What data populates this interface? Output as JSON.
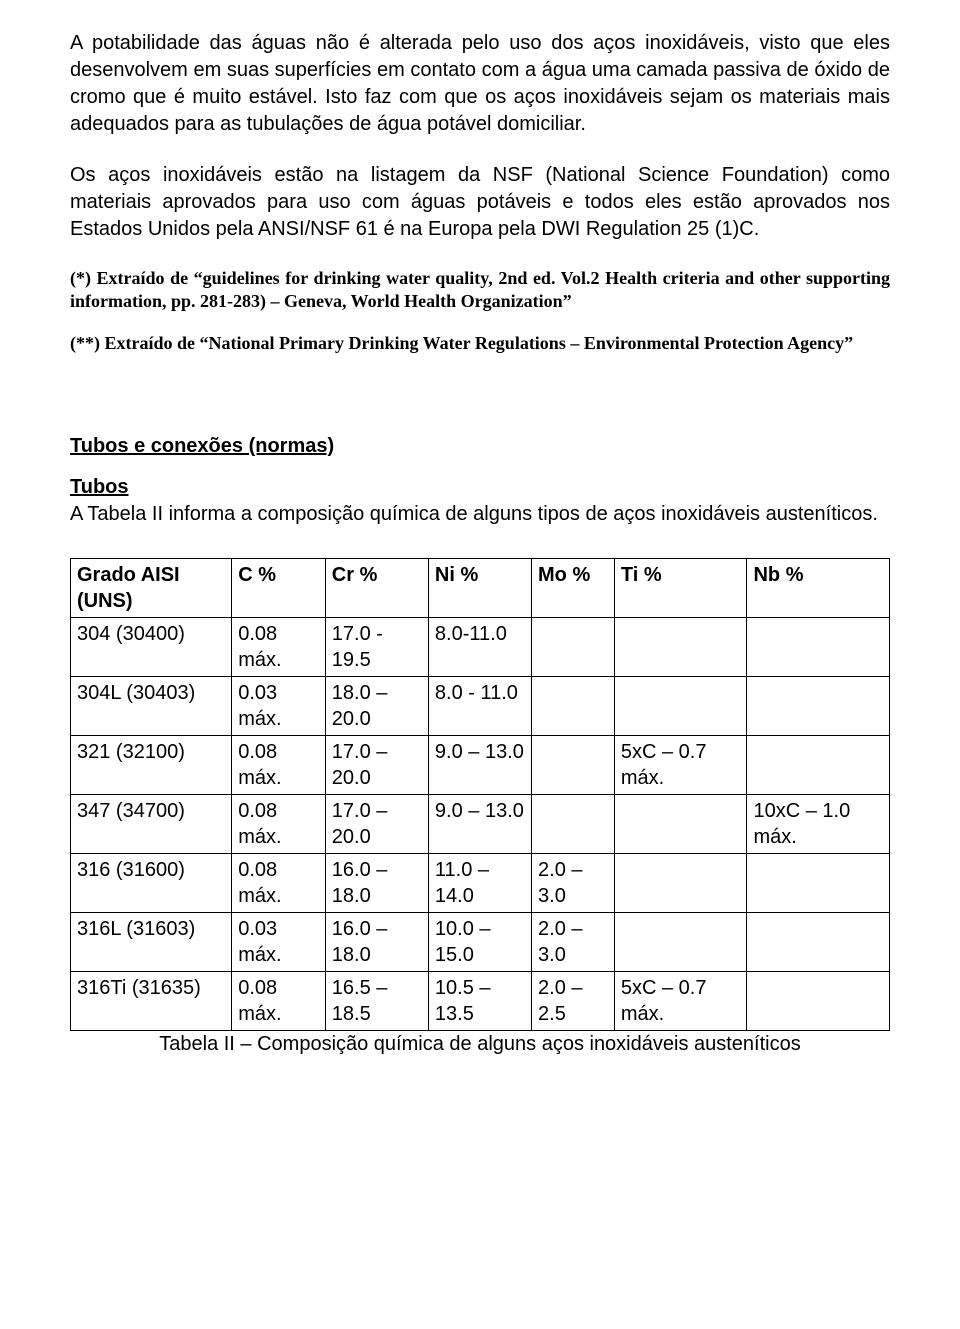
{
  "paragraphs": {
    "p1": "A potabilidade das águas não é alterada pelo uso dos aços inoxidáveis, visto que eles desenvolvem em suas superfícies em contato com a água uma camada passiva de óxido de cromo que é muito estável. Isto faz com que os aços inoxidáveis sejam os materiais mais adequados para as tubulações de água potável domiciliar.",
    "p2": "Os aços inoxidáveis estão na listagem da NSF (National Science Foundation) como materiais aprovados para uso com águas potáveis e todos eles estão aprovados nos Estados Unidos pela ANSI/NSF 61 é na Europa pela DWI Regulation 25 (1)C."
  },
  "footnotes": {
    "f1": "(*) Extraído de “guidelines for drinking water quality, 2nd ed. Vol.2 Health criteria and other supporting information, pp. 281-283) – Geneva, World Health Organization”",
    "f2": "(**) Extraído de “National Primary Drinking Water Regulations – Environmental Protection Agency”"
  },
  "section": {
    "header": "Tubos e conexões (normas)",
    "subheader": "Tubos",
    "intro": "A Tabela II informa a composição química de alguns tipos de aços inoxidáveis austeníticos."
  },
  "table": {
    "headers": [
      "Grado AISI (UNS)",
      "C %",
      "Cr %",
      "Ni %",
      "Mo %",
      "Ti %",
      "Nb %"
    ],
    "rows": [
      [
        "304 (30400)",
        "0.08 máx.",
        "17.0 - 19.5",
        "8.0-11.0",
        "",
        "",
        ""
      ],
      [
        "304L (30403)",
        "0.03 máx.",
        "18.0 – 20.0",
        "8.0 - 11.0",
        "",
        "",
        ""
      ],
      [
        "321 (32100)",
        "0.08 máx.",
        "17.0 – 20.0",
        "9.0 – 13.0",
        "",
        "5xC – 0.7 máx.",
        ""
      ],
      [
        "347 (34700)",
        "0.08 máx.",
        "17.0 – 20.0",
        "9.0 – 13.0",
        "",
        "",
        "10xC – 1.0 máx."
      ],
      [
        "316 (31600)",
        "0.08 máx.",
        "16.0 – 18.0",
        "11.0 – 14.0",
        "2.0 – 3.0",
        "",
        ""
      ],
      [
        "316L (31603)",
        "0.03 máx.",
        "16.0 – 18.0",
        "10.0 – 15.0",
        "2.0 – 3.0",
        "",
        ""
      ],
      [
        "316Ti (31635)",
        "0.08 máx.",
        "16.5 – 18.5",
        "10.5 – 13.5",
        "2.0 –2.5",
        "5xC – 0.7 máx.",
        ""
      ]
    ],
    "caption": "Tabela II – Composição química de alguns aços inoxidáveis austeníticos"
  }
}
